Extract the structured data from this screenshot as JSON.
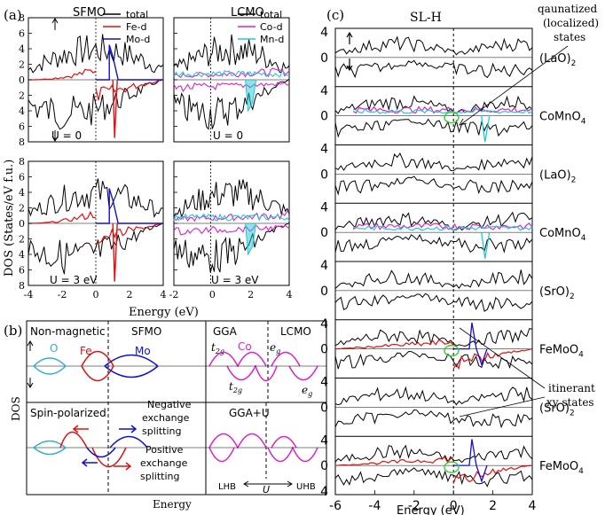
{
  "chart_data": {
    "type": "line",
    "panels": [
      {
        "label": "(a)",
        "sub_charts": [
          {
            "title": "SFMO",
            "xlim": [
              -4,
              4
            ],
            "ylim": [
              -8,
              8
            ],
            "u_label": "U = 0",
            "legend": [
              "total",
              "Fe-d",
              "Mo-d"
            ]
          },
          {
            "title": "LCMO",
            "xlim": [
              -4,
              4
            ],
            "ylim": [
              -8,
              8
            ],
            "u_label": "U = 0",
            "legend": [
              "total",
              "Co-d",
              "Mn-d"
            ]
          },
          {
            "title": "",
            "xlim": [
              -4,
              4
            ],
            "ylim": [
              -8,
              8
            ],
            "u_label": "U = 3 eV"
          },
          {
            "title": "",
            "xlim": [
              -4,
              4
            ],
            "ylim": [
              -8,
              8
            ],
            "u_label": "U = 3 eV"
          }
        ],
        "x_ticks_left": [
          "-4",
          "-2",
          "0",
          "2",
          "4"
        ],
        "x_ticks_right": [
          "-2",
          "0",
          "2",
          "4"
        ],
        "y_ticks": [
          "8",
          "6",
          "4",
          "2",
          "0",
          "2",
          "4",
          "6",
          "8"
        ],
        "ylabel": "DOS (States/eV f.u.)",
        "xlabel": "Energy (eV)"
      },
      {
        "label": "(b)",
        "ylabel": "DOS",
        "xlabel": "Energy",
        "headers": [
          "Non-magnetic",
          "SFMO",
          "GGA",
          "LCMO"
        ],
        "species": [
          "O",
          "Fe",
          "Mo",
          "Co"
        ],
        "orbitals": {
          "t2g_main": "t",
          "t2g_sub": "2g",
          "eg_main": "e",
          "eg_sub": "g"
        },
        "notes": [
          "Spin-polarized",
          "Negative",
          "exchange",
          "splitting",
          "Positive",
          "exchange",
          "splitting",
          "GGA+U",
          "LHB",
          "UHB",
          "U"
        ]
      },
      {
        "label": "(c)",
        "title": "SL-H",
        "xlim": [
          -6,
          4
        ],
        "x_ticks": [
          "-6",
          "-4",
          "-2",
          "0",
          "2",
          "4"
        ],
        "y_ticks_pair": [
          "4",
          "0",
          "4"
        ],
        "xlabel": "Energy (eV)",
        "layers": [
          {
            "main": "(LaO)",
            "sub": "2"
          },
          {
            "main": "CoMnO",
            "sub": "4"
          },
          {
            "main": "(LaO)",
            "sub": "2"
          },
          {
            "main": "CoMnO",
            "sub": "4"
          },
          {
            "main": "(SrO)",
            "sub": "2"
          },
          {
            "main": "FeMoO",
            "sub": "4"
          },
          {
            "main": "(SrO)",
            "sub": "2"
          },
          {
            "main": "FeMoO",
            "sub": "4"
          }
        ],
        "annotations": {
          "localized": [
            "qaunatized",
            "(localized)",
            "states"
          ],
          "itinerant": [
            "itinerant",
            "xy states"
          ]
        }
      }
    ],
    "series_colors": {
      "total": "#000000",
      "fe": "#e01010",
      "mo": "#1010d0",
      "co": "#e020c8",
      "mn": "#20c8d8",
      "o": "#30b0d0",
      "marker": "#30d030"
    }
  }
}
